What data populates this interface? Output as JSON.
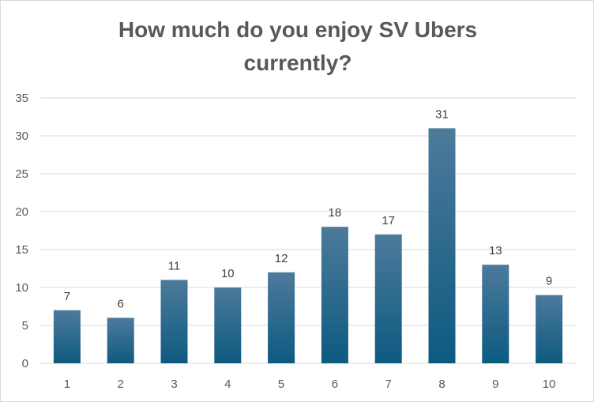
{
  "colors": {
    "bar_top": "#4d7a9b",
    "bar_bottom": "#0d5a80",
    "gridline": "#d9d9d9",
    "text": "#595959"
  },
  "chart_data": {
    "type": "bar",
    "title_lines": [
      "How much do you enjoy SV Ubers",
      "currently?"
    ],
    "categories": [
      "1",
      "2",
      "3",
      "4",
      "5",
      "6",
      "7",
      "8",
      "9",
      "10"
    ],
    "values": [
      7,
      6,
      11,
      10,
      12,
      18,
      17,
      31,
      13,
      9
    ],
    "data_labels": [
      "7",
      "6",
      "11",
      "10",
      "12",
      "18",
      "17",
      "31",
      "13",
      "9"
    ],
    "ylim": [
      0,
      35
    ],
    "yticks": [
      "0",
      "5",
      "10",
      "15",
      "20",
      "25",
      "30",
      "35"
    ],
    "xlabel": "",
    "ylabel": "",
    "grid": true,
    "legend": "none"
  }
}
